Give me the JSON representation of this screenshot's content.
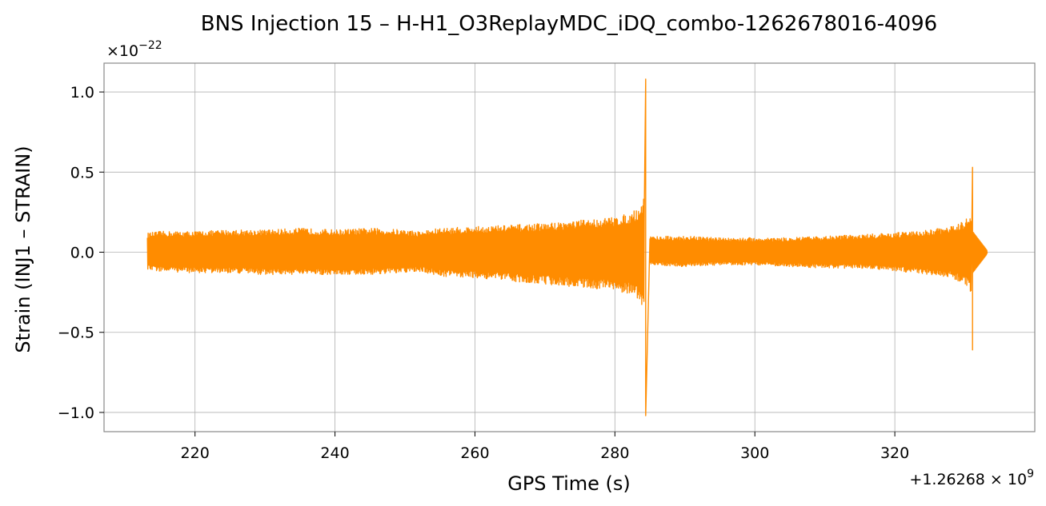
{
  "chart_data": {
    "type": "line",
    "title": "BNS Injection 15 – H-H1_O3ReplayMDC_iDQ_combo-1262678016-4096",
    "xlabel": "GPS Time (s)",
    "ylabel": "Strain (INJ1 – STRAIN)",
    "x_offset_label": "+1.26268 × 10^9",
    "y_multiplier_label": "×10^−22",
    "xlim": [
      207,
      340
    ],
    "ylim": [
      -1.12,
      1.18
    ],
    "xticks": [
      220,
      240,
      260,
      280,
      300,
      320
    ],
    "yticks": [
      -1.0,
      -0.5,
      0.0,
      0.5,
      1.0
    ],
    "ytick_labels": [
      "−1.0",
      "−0.5",
      "0.0",
      "0.5",
      "1.0"
    ],
    "grid": true,
    "series": [
      {
        "color": "#ff8c00",
        "envelope": {
          "x": [
            213.2,
            215,
            220,
            225,
            230,
            235,
            240,
            245,
            250,
            252,
            255,
            260,
            265,
            270,
            275,
            278,
            280,
            282,
            283.5,
            284.2
          ],
          "y_max": [
            0.12,
            0.13,
            0.13,
            0.14,
            0.14,
            0.15,
            0.14,
            0.15,
            0.14,
            0.13,
            0.15,
            0.16,
            0.17,
            0.18,
            0.2,
            0.21,
            0.22,
            0.24,
            0.28,
            0.35
          ],
          "y_min": [
            -0.11,
            -0.12,
            -0.13,
            -0.13,
            -0.14,
            -0.14,
            -0.14,
            -0.14,
            -0.13,
            -0.12,
            -0.15,
            -0.16,
            -0.18,
            -0.2,
            -0.22,
            -0.23,
            -0.24,
            -0.26,
            -0.3,
            -0.38
          ]
        },
        "envelope_post": {
          "x": [
            285,
            290,
            295,
            300,
            305,
            310,
            315,
            320,
            325,
            328,
            330,
            330.9
          ],
          "y_max": [
            0.1,
            0.1,
            0.09,
            0.09,
            0.09,
            0.1,
            0.11,
            0.12,
            0.14,
            0.16,
            0.2,
            0.24
          ],
          "y_min": [
            -0.08,
            -0.09,
            -0.08,
            -0.08,
            -0.09,
            -0.1,
            -0.1,
            -0.12,
            -0.14,
            -0.16,
            -0.2,
            -0.25
          ]
        },
        "spikes": [
          {
            "x": 284.4,
            "y_max": 1.08,
            "y_min": -1.02
          },
          {
            "x": 331.1,
            "y_max": 0.53,
            "y_min": -0.61
          }
        ],
        "taper_end_x": 333.2
      }
    ]
  }
}
